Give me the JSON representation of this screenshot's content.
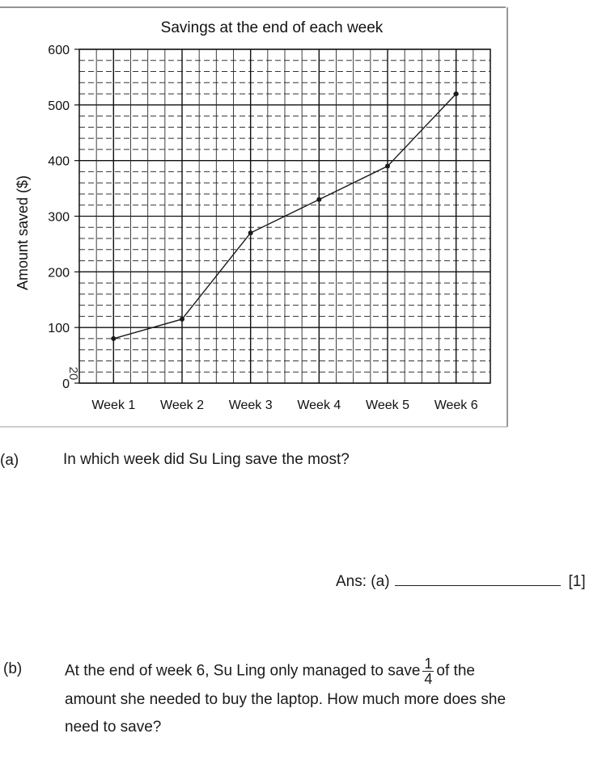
{
  "chart_data": {
    "type": "line",
    "title": "Savings at the end of each week",
    "xlabel": "",
    "ylabel": "Amount saved ($)",
    "categories": [
      "Week 1",
      "Week 2",
      "Week 3",
      "Week 4",
      "Week 5",
      "Week 6"
    ],
    "values": [
      80,
      115,
      270,
      330,
      390,
      520
    ],
    "ylim": [
      0,
      600
    ],
    "yticks": [
      0,
      100,
      200,
      300,
      400,
      500,
      600
    ],
    "ytick_labels": [
      "0",
      "100",
      "200",
      "300",
      "400",
      "500",
      "600"
    ],
    "minor_step": 20,
    "grid": true,
    "handwritten_annotation": "20",
    "line_color": "#1a1a1a"
  },
  "questions": {
    "a": {
      "label": "(a)",
      "text": "In which week did Su Ling save the most?",
      "answer_prefix": "Ans: (a)",
      "marks": "[1]"
    },
    "b": {
      "label": "(b)",
      "text_before": "At the end of week 6, Su Ling only managed to save",
      "fraction_numerator": "1",
      "fraction_denominator": "4",
      "text_after": "of the",
      "line2": "amount she needed to buy the laptop.  How much more does she",
      "line3": "need to save?"
    }
  }
}
